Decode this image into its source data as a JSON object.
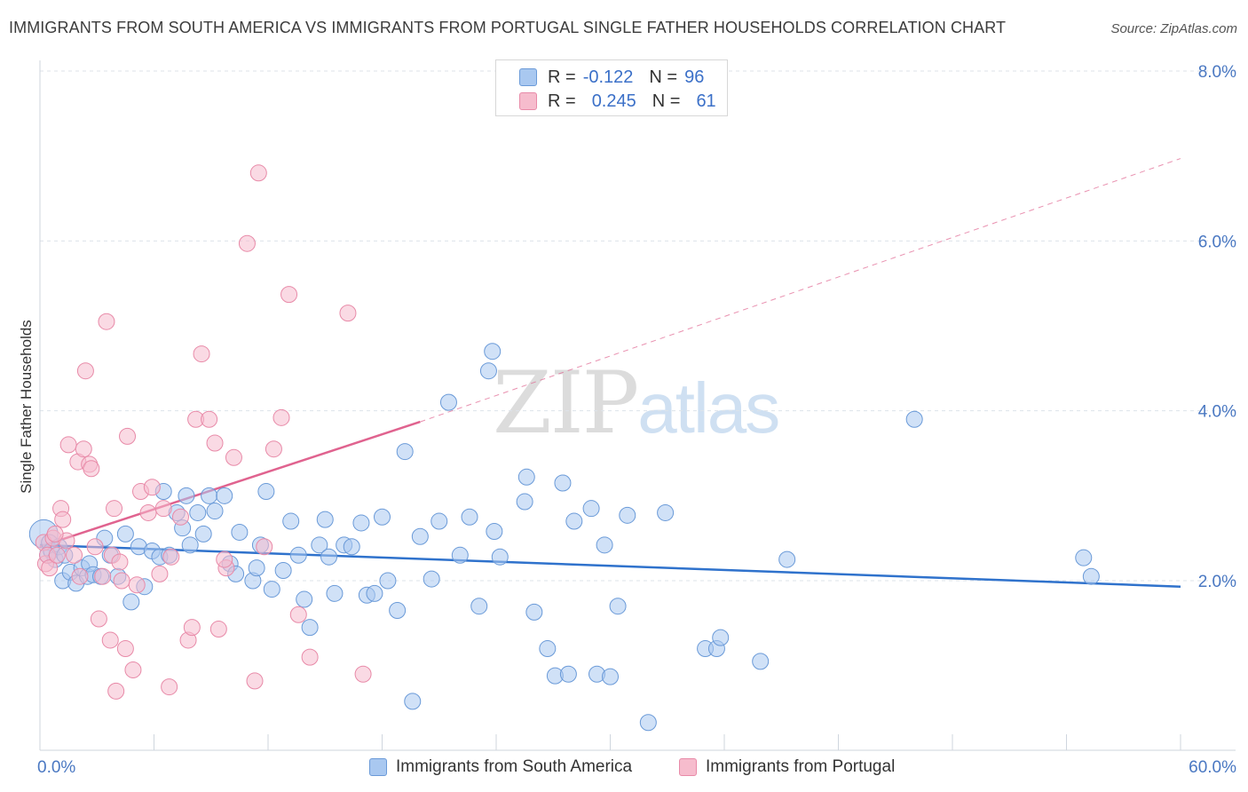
{
  "title": "IMMIGRANTS FROM SOUTH AMERICA VS IMMIGRANTS FROM PORTUGAL SINGLE FATHER HOUSEHOLDS CORRELATION CHART",
  "source": "Source: ZipAtlas.com",
  "watermark": {
    "zip": "ZIP",
    "atlas": "atlas"
  },
  "legend": {
    "rows": [
      {
        "r_label": "R =",
        "r_value": "-0.122",
        "n_label": "N =",
        "n_value": "96",
        "color": "#a9c8f0"
      },
      {
        "r_label": "R =",
        "r_value": "0.245",
        "n_label": "N =",
        "n_value": "61",
        "color": "#f6bccd"
      }
    ]
  },
  "bottom_legend": {
    "south_america": "Immigrants from South America",
    "portugal": "Immigrants from Portugal"
  },
  "colors": {
    "blue_fill": "#a9c8f0",
    "blue_stroke": "#6a9ad8",
    "blue_line": "#2f72cc",
    "pink_fill": "#f6bccd",
    "pink_stroke": "#e88aa8",
    "pink_line": "#e0638f",
    "grid": "#dde3ea",
    "axis_tick_text": "#4a78c2"
  },
  "chart_data": {
    "type": "scatter",
    "title": "IMMIGRANTS FROM SOUTH AMERICA VS IMMIGRANTS FROM PORTUGAL SINGLE FATHER HOUSEHOLDS CORRELATION CHART",
    "xlabel": "",
    "ylabel": "Single Father Households",
    "xlim": [
      0,
      60
    ],
    "ylim": [
      0,
      8.3
    ],
    "x_tick_labels": [
      "0.0%",
      "60.0%"
    ],
    "y_ticks": [
      2,
      4,
      6,
      8
    ],
    "y_tick_labels": [
      "2.0%",
      "4.0%",
      "6.0%",
      "8.0%"
    ],
    "grid": true,
    "legend_position": "top-center",
    "series": [
      {
        "name": "Immigrants from South America",
        "color": "#a9c8f0",
        "trend": {
          "x": [
            0,
            60
          ],
          "y": [
            2.42,
            1.93
          ],
          "style": "solid"
        },
        "points": [
          [
            0.2,
            2.55
          ],
          [
            0.4,
            2.3
          ],
          [
            0.5,
            2.45
          ],
          [
            0.6,
            2.35
          ],
          [
            0.8,
            2.25
          ],
          [
            1.0,
            2.4
          ],
          [
            1.2,
            2.0
          ],
          [
            1.3,
            2.3
          ],
          [
            1.6,
            2.1
          ],
          [
            1.9,
            1.97
          ],
          [
            2.2,
            2.15
          ],
          [
            2.5,
            2.05
          ],
          [
            2.6,
            2.2
          ],
          [
            2.8,
            2.07
          ],
          [
            3.2,
            2.05
          ],
          [
            3.4,
            2.5
          ],
          [
            3.7,
            2.3
          ],
          [
            4.1,
            2.05
          ],
          [
            4.5,
            2.55
          ],
          [
            4.8,
            1.75
          ],
          [
            5.2,
            2.4
          ],
          [
            5.5,
            1.93
          ],
          [
            5.9,
            2.35
          ],
          [
            6.3,
            2.28
          ],
          [
            6.5,
            3.05
          ],
          [
            6.8,
            2.3
          ],
          [
            7.2,
            2.8
          ],
          [
            7.5,
            2.62
          ],
          [
            7.7,
            3.0
          ],
          [
            7.9,
            2.42
          ],
          [
            8.3,
            2.8
          ],
          [
            8.6,
            2.55
          ],
          [
            8.9,
            3.0
          ],
          [
            9.2,
            2.82
          ],
          [
            9.7,
            3.0
          ],
          [
            10.0,
            2.2
          ],
          [
            10.3,
            2.08
          ],
          [
            10.5,
            2.57
          ],
          [
            11.2,
            2.0
          ],
          [
            11.4,
            2.15
          ],
          [
            11.6,
            2.42
          ],
          [
            11.9,
            3.05
          ],
          [
            12.2,
            1.9
          ],
          [
            12.8,
            2.12
          ],
          [
            13.2,
            2.7
          ],
          [
            13.6,
            2.3
          ],
          [
            13.9,
            1.78
          ],
          [
            14.2,
            1.45
          ],
          [
            14.7,
            2.42
          ],
          [
            15.0,
            2.72
          ],
          [
            15.2,
            2.28
          ],
          [
            15.5,
            1.85
          ],
          [
            16.0,
            2.42
          ],
          [
            16.4,
            2.4
          ],
          [
            16.9,
            2.68
          ],
          [
            17.2,
            1.83
          ],
          [
            17.6,
            1.85
          ],
          [
            18.0,
            2.75
          ],
          [
            18.3,
            2.0
          ],
          [
            18.8,
            1.65
          ],
          [
            19.2,
            3.52
          ],
          [
            19.6,
            0.58
          ],
          [
            20.0,
            2.52
          ],
          [
            20.6,
            2.02
          ],
          [
            21.0,
            2.7
          ],
          [
            21.5,
            4.1
          ],
          [
            22.1,
            2.3
          ],
          [
            22.6,
            2.75
          ],
          [
            23.1,
            1.7
          ],
          [
            23.6,
            4.47
          ],
          [
            23.8,
            4.7
          ],
          [
            23.9,
            2.58
          ],
          [
            24.2,
            2.28
          ],
          [
            25.5,
            2.93
          ],
          [
            25.6,
            3.22
          ],
          [
            26.0,
            1.63
          ],
          [
            26.7,
            1.2
          ],
          [
            27.1,
            0.88
          ],
          [
            27.5,
            3.15
          ],
          [
            27.8,
            0.9
          ],
          [
            28.1,
            2.7
          ],
          [
            29.0,
            2.85
          ],
          [
            29.3,
            0.9
          ],
          [
            29.7,
            2.42
          ],
          [
            30.0,
            0.87
          ],
          [
            30.4,
            1.7
          ],
          [
            30.9,
            2.77
          ],
          [
            32.0,
            0.33
          ],
          [
            32.9,
            2.8
          ],
          [
            35.0,
            1.2
          ],
          [
            35.6,
            1.2
          ],
          [
            35.8,
            1.33
          ],
          [
            37.9,
            1.05
          ],
          [
            39.3,
            2.25
          ],
          [
            46.0,
            3.9
          ],
          [
            54.9,
            2.27
          ],
          [
            55.3,
            2.05
          ]
        ]
      },
      {
        "name": "Immigrants from Portugal",
        "color": "#f6bccd",
        "trend": {
          "x": [
            0,
            20,
            60
          ],
          "y": [
            2.4,
            3.87,
            6.97
          ],
          "style": "solid-then-dashed"
        },
        "points": [
          [
            0.2,
            2.45
          ],
          [
            0.3,
            2.2
          ],
          [
            0.4,
            2.3
          ],
          [
            0.5,
            2.15
          ],
          [
            0.7,
            2.5
          ],
          [
            0.9,
            2.3
          ],
          [
            1.1,
            2.85
          ],
          [
            1.2,
            2.72
          ],
          [
            1.4,
            2.47
          ],
          [
            1.5,
            3.6
          ],
          [
            1.8,
            2.3
          ],
          [
            2.0,
            3.4
          ],
          [
            2.1,
            2.05
          ],
          [
            2.3,
            3.55
          ],
          [
            2.6,
            3.37
          ],
          [
            2.7,
            3.32
          ],
          [
            2.9,
            2.4
          ],
          [
            3.1,
            1.55
          ],
          [
            3.3,
            2.05
          ],
          [
            3.5,
            5.05
          ],
          [
            3.7,
            1.3
          ],
          [
            3.8,
            2.3
          ],
          [
            3.9,
            2.85
          ],
          [
            4.0,
            0.7
          ],
          [
            4.2,
            2.22
          ],
          [
            4.3,
            2.0
          ],
          [
            4.5,
            1.2
          ],
          [
            4.6,
            3.7
          ],
          [
            4.9,
            0.95
          ],
          [
            5.1,
            1.95
          ],
          [
            5.3,
            3.05
          ],
          [
            5.7,
            2.8
          ],
          [
            5.9,
            3.1
          ],
          [
            6.5,
            2.85
          ],
          [
            6.8,
            0.75
          ],
          [
            6.9,
            2.28
          ],
          [
            7.4,
            2.75
          ],
          [
            7.8,
            1.3
          ],
          [
            8.0,
            1.45
          ],
          [
            8.2,
            3.9
          ],
          [
            8.5,
            4.67
          ],
          [
            8.9,
            3.9
          ],
          [
            9.2,
            3.62
          ],
          [
            9.4,
            1.43
          ],
          [
            9.8,
            2.15
          ],
          [
            10.2,
            3.45
          ],
          [
            10.9,
            5.97
          ],
          [
            11.3,
            0.82
          ],
          [
            11.5,
            6.8
          ],
          [
            11.8,
            2.4
          ],
          [
            12.3,
            3.55
          ],
          [
            12.7,
            3.92
          ],
          [
            13.1,
            5.37
          ],
          [
            13.6,
            1.6
          ],
          [
            14.2,
            1.1
          ],
          [
            16.2,
            5.15
          ],
          [
            17.0,
            0.9
          ],
          [
            6.3,
            2.08
          ],
          [
            9.7,
            2.25
          ],
          [
            2.4,
            4.47
          ],
          [
            0.8,
            2.55
          ]
        ]
      }
    ]
  }
}
